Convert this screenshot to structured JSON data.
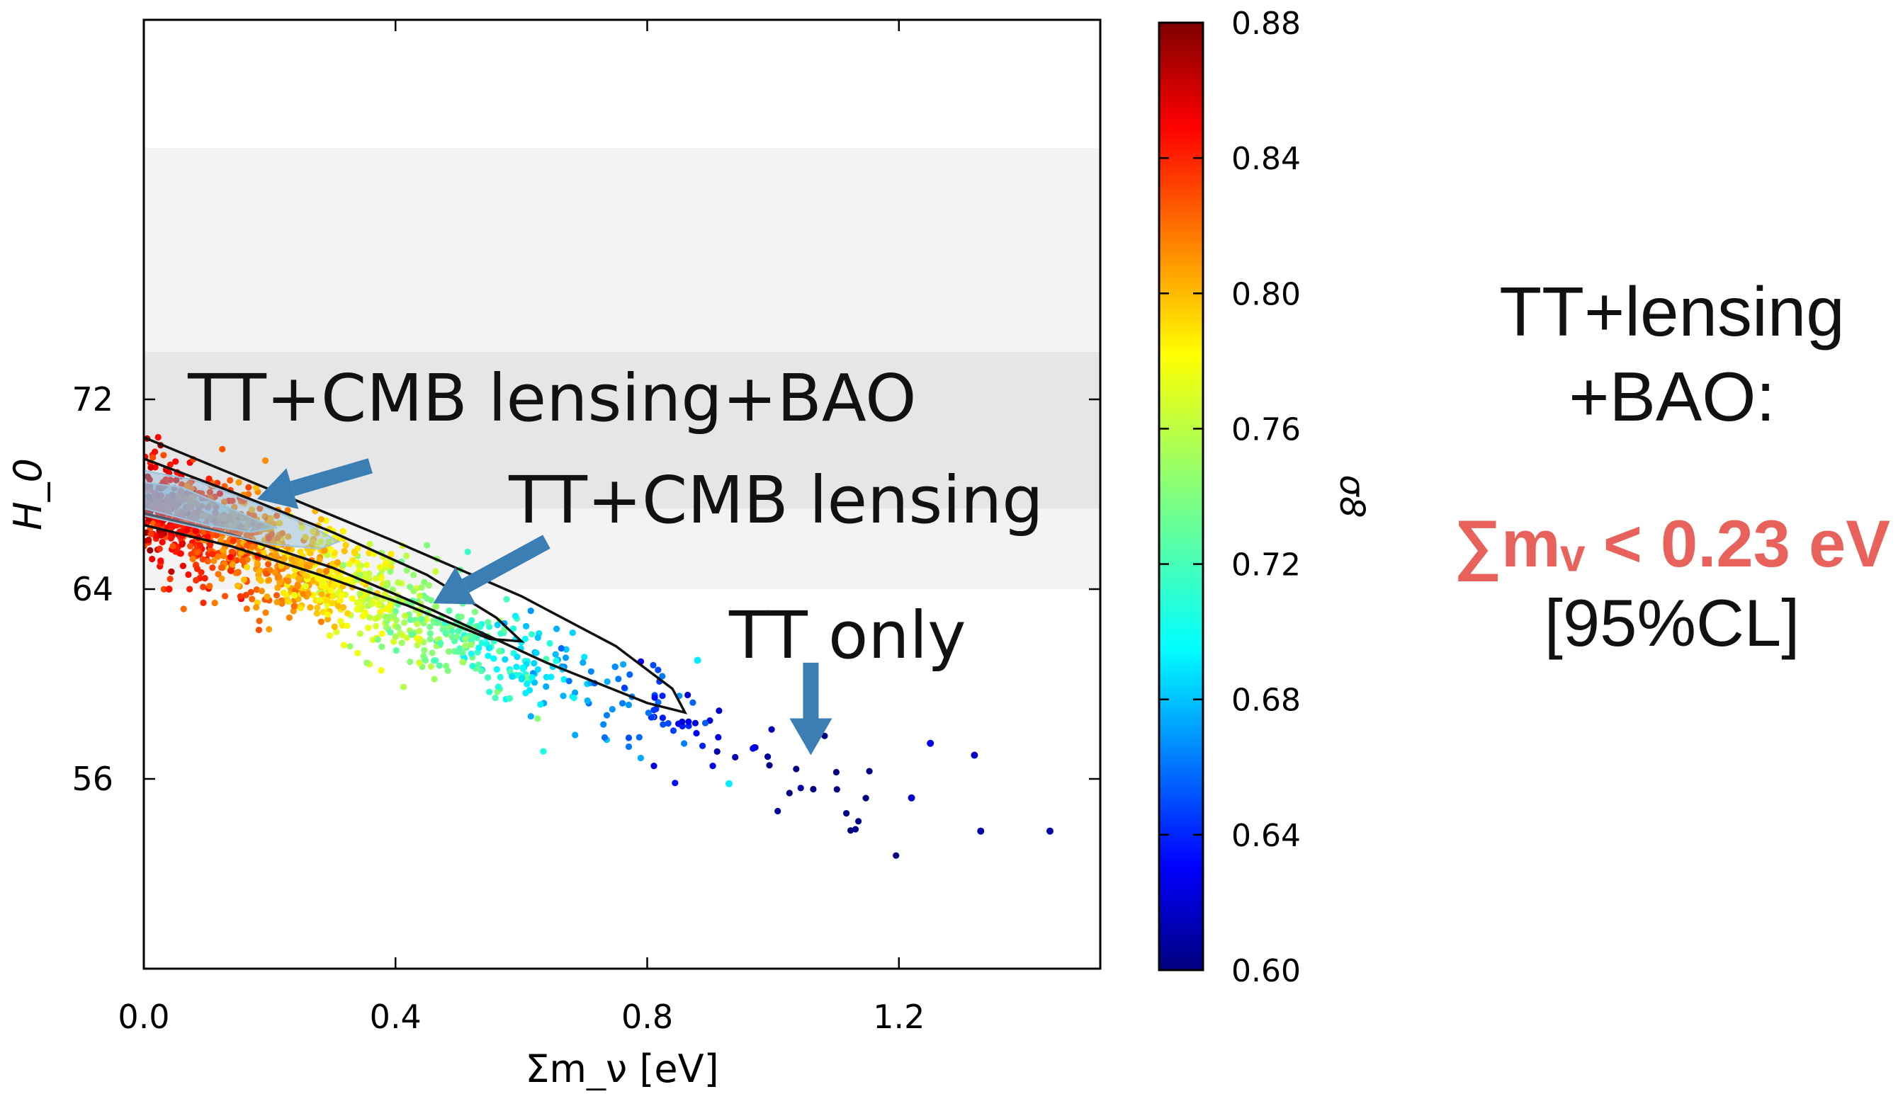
{
  "chart_data": {
    "type": "scatter",
    "xlabel": "Σm_ν [eV]",
    "ylabel": "H_0",
    "xlim": [
      0.0,
      1.52
    ],
    "ylim": [
      48.0,
      88.0
    ],
    "xticks": [
      0.0,
      0.4,
      0.8,
      1.2
    ],
    "yticks": [
      56,
      64,
      72
    ],
    "xtick_labels": [
      "0.0",
      "0.4",
      "0.8",
      "1.2"
    ],
    "ytick_labels": [
      "56",
      "64",
      "72"
    ],
    "colorbar": {
      "label": "σ8",
      "range": [
        0.6,
        0.88
      ],
      "ticks": [
        0.6,
        0.64,
        0.68,
        0.72,
        0.76,
        0.8,
        0.84,
        0.88
      ],
      "tick_labels": [
        "0.60",
        "0.64",
        "0.68",
        "0.72",
        "0.76",
        "0.80",
        "0.84",
        "0.88"
      ],
      "colormap": "jet"
    },
    "h0_bands": [
      {
        "range": [
          64.0,
          82.6
        ],
        "color": "#f3f3f3"
      },
      {
        "range": [
          67.4,
          74.0
        ],
        "color": "#e6e6e6"
      }
    ],
    "scatter_trend": {
      "description_ref": "points follow H0 ≈ 67.6 − 11·Σm_ν with σ8 decreasing from ~0.85 to ~0.61",
      "n_points": 1400
    },
    "highlight_points": [
      {
        "x": 1.33,
        "y": 53.8,
        "z": 0.61
      },
      {
        "x": 1.44,
        "y": 53.8,
        "z": 0.61
      },
      {
        "x": 1.32,
        "y": 57.0,
        "z": 0.62
      },
      {
        "x": 1.25,
        "y": 57.5,
        "z": 0.63
      },
      {
        "x": 1.22,
        "y": 55.2,
        "z": 0.62
      },
      {
        "x": 0.93,
        "y": 55.8,
        "z": 0.7
      },
      {
        "x": 0.88,
        "y": 61.0,
        "z": 0.7
      },
      {
        "x": 0.04,
        "y": 64.0,
        "z": 0.84
      }
    ],
    "contours": [
      {
        "name": "TT only",
        "levels": [
          {
            "x": [
              0.0,
              0.2,
              0.4,
              0.6,
              0.75,
              0.84,
              0.86,
              0.8,
              0.64,
              0.46,
              0.3,
              0.14,
              0.0
            ],
            "y": [
              70.4,
              68.2,
              66.0,
              63.7,
              61.6,
              59.8,
              58.8,
              59.2,
              60.9,
              63.1,
              64.9,
              66.3,
              67.2
            ]
          }
        ]
      },
      {
        "name": "TT+CMB lensing",
        "levels": [
          {
            "x": [
              0.0,
              0.15,
              0.3,
              0.45,
              0.56,
              0.6,
              0.55,
              0.42,
              0.28,
              0.14,
              0.0
            ],
            "y": [
              69.5,
              68.0,
              66.4,
              64.6,
              62.8,
              61.8,
              61.9,
              63.3,
              64.6,
              65.8,
              66.7
            ]
          }
        ]
      },
      {
        "name": "TT+CMB lensing+BAO",
        "fill": "#8fb9d6",
        "levels": [
          {
            "x": [
              0.0,
              0.08,
              0.18,
              0.27,
              0.31,
              0.28,
              0.2,
              0.1,
              0.0
            ],
            "y": [
              69.0,
              68.6,
              67.6,
              66.6,
              66.0,
              65.7,
              65.9,
              66.5,
              67.1
            ]
          },
          {
            "x": [
              0.0,
              0.06,
              0.13,
              0.18,
              0.21,
              0.17,
              0.1,
              0.03,
              0.0
            ],
            "y": [
              68.5,
              68.3,
              67.5,
              66.9,
              66.6,
              66.4,
              66.7,
              67.2,
              67.4
            ]
          }
        ]
      }
    ],
    "annotations": [
      {
        "text": "TT+CMB lensing+BAO",
        "text_at": [
          0.07,
          72.0
        ],
        "arrow_from": [
          0.36,
          69.2
        ],
        "arrow_to": [
          0.18,
          67.8
        ]
      },
      {
        "text": "TT+CMB lensing",
        "text_at": [
          0.58,
          67.7
        ],
        "arrow_from": [
          0.64,
          66.0
        ],
        "arrow_to": [
          0.46,
          63.4
        ]
      },
      {
        "text": "TT only",
        "text_at": [
          0.93,
          62.0
        ],
        "arrow_from": [
          1.06,
          60.9
        ],
        "arrow_to": [
          1.06,
          57.0
        ]
      }
    ],
    "arrow_color": "#3a7eb4"
  },
  "side_panel": {
    "title_line1": "TT+lensing",
    "title_line2": "+BAO:",
    "result": "∑mᵥ < 0.23 eV",
    "confidence": "[95%CL]"
  }
}
